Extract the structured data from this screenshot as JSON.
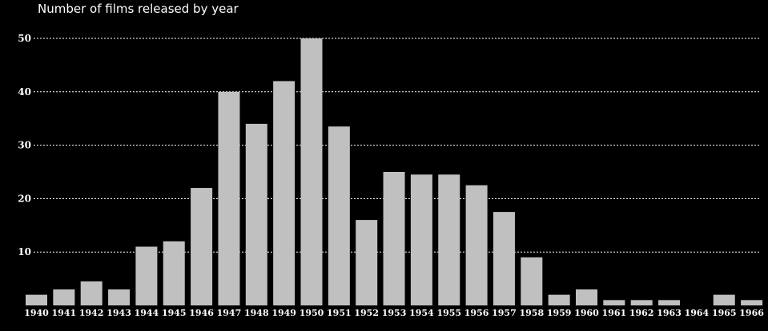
{
  "chart_data": {
    "type": "bar",
    "title": "Number of films released by year",
    "xlabel": "",
    "ylabel": "",
    "categories": [
      "1940",
      "1941",
      "1942",
      "1943",
      "1944",
      "1945",
      "1946",
      "1947",
      "1948",
      "1949",
      "1950",
      "1951",
      "1952",
      "1953",
      "1954",
      "1955",
      "1956",
      "1957",
      "1958",
      "1959",
      "1960",
      "1961",
      "1962",
      "1963",
      "1964",
      "1965",
      "1966"
    ],
    "values": [
      2,
      3,
      4.5,
      3,
      11,
      12,
      22,
      40,
      34,
      42,
      50,
      33.5,
      16,
      25,
      24.5,
      24.5,
      22.5,
      17.5,
      9,
      2,
      3,
      1,
      1,
      1,
      0,
      2,
      1
    ],
    "ylim": [
      0,
      50
    ],
    "yticks": [
      "10",
      "20",
      "30",
      "40",
      "50"
    ],
    "grid": true,
    "colors": {
      "background": "#000000",
      "bar": "#c0c0c0",
      "text": "#ffffff",
      "grid": "#ffffff"
    }
  }
}
